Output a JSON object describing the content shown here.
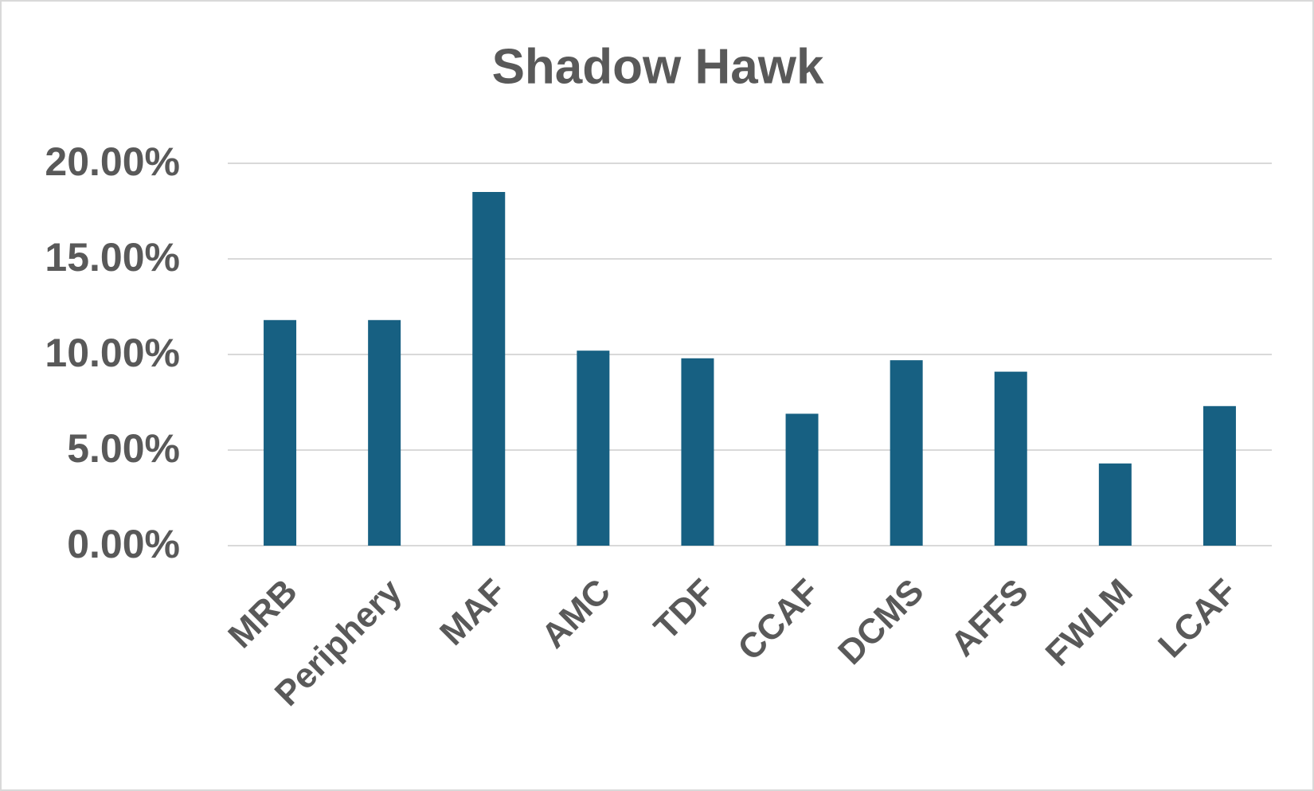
{
  "chart_data": {
    "type": "bar",
    "title": "Shadow Hawk",
    "categories": [
      "MRB",
      "Periphery",
      "MAF",
      "AMC",
      "TDF",
      "CCAF",
      "DCMS",
      "AFFS",
      "FWLM",
      "LCAF"
    ],
    "values": [
      11.8,
      11.8,
      18.5,
      10.2,
      9.8,
      6.9,
      9.7,
      9.1,
      4.3,
      7.3
    ],
    "color": "#176082",
    "ylim": [
      0,
      20
    ],
    "yticks": [
      {
        "value": 0,
        "label": "0.00%"
      },
      {
        "value": 5,
        "label": "5.00%"
      },
      {
        "value": 10,
        "label": "10.00%"
      },
      {
        "value": 15,
        "label": "15.00%"
      },
      {
        "value": 20,
        "label": "20.00%"
      }
    ],
    "grid": true
  }
}
